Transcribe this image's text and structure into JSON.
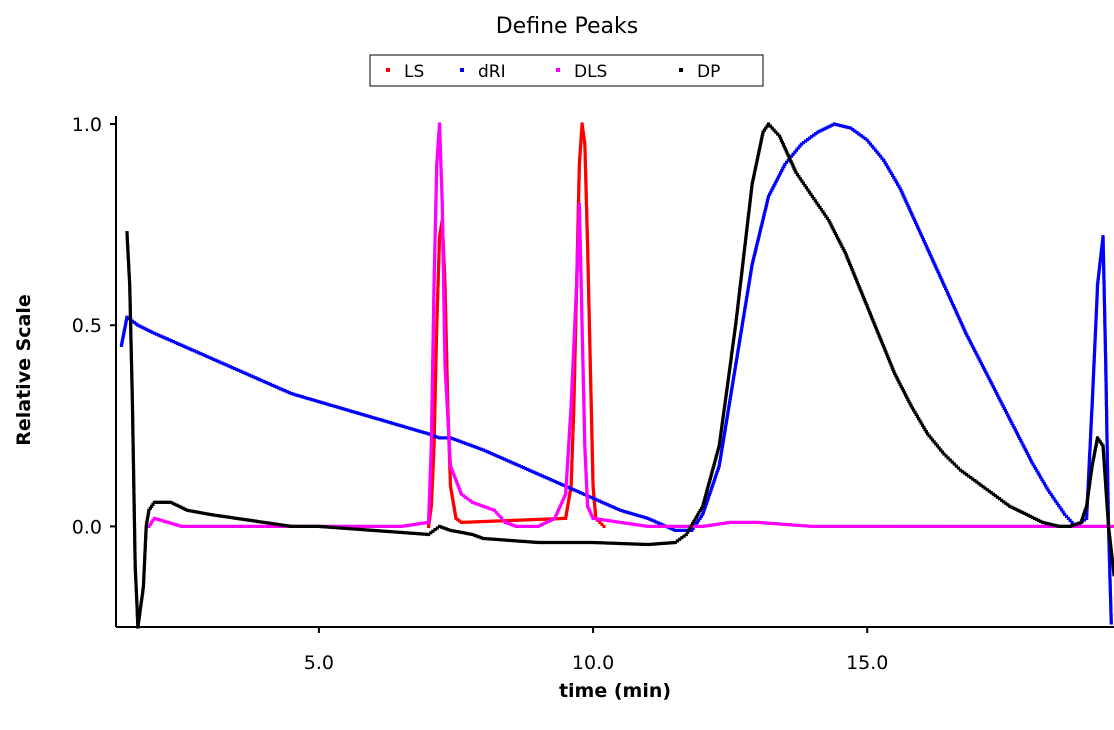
{
  "chart_data": {
    "type": "scatter",
    "title": "Define Peaks",
    "xlabel": "time (min)",
    "ylabel": "Relative Scale",
    "xlim": [
      1.3,
      19.5
    ],
    "ylim": [
      -0.25,
      1.02
    ],
    "grid": false,
    "legend_position": "top-center",
    "x_ticks": [
      5.0,
      10.0,
      15.0
    ],
    "x_tick_labels": [
      "5.0",
      "10.0",
      "15.0"
    ],
    "y_ticks": [
      0.0,
      0.5,
      1.0
    ],
    "y_tick_labels": [
      "0.0",
      "0.5",
      "1.0"
    ],
    "series": [
      {
        "name": "LS",
        "color": "#ff0000",
        "points": [
          [
            7.0,
            0.0
          ],
          [
            7.05,
            0.05
          ],
          [
            7.1,
            0.2
          ],
          [
            7.15,
            0.5
          ],
          [
            7.2,
            0.72
          ],
          [
            7.25,
            0.76
          ],
          [
            7.3,
            0.6
          ],
          [
            7.35,
            0.3
          ],
          [
            7.4,
            0.1
          ],
          [
            7.5,
            0.02
          ],
          [
            7.6,
            0.01
          ],
          [
            9.5,
            0.02
          ],
          [
            9.6,
            0.1
          ],
          [
            9.65,
            0.3
          ],
          [
            9.7,
            0.6
          ],
          [
            9.75,
            0.9
          ],
          [
            9.8,
            1.0
          ],
          [
            9.85,
            0.95
          ],
          [
            9.9,
            0.7
          ],
          [
            9.95,
            0.4
          ],
          [
            10.0,
            0.1
          ],
          [
            10.05,
            0.02
          ],
          [
            10.2,
            0.0
          ]
        ]
      },
      {
        "name": "dRI",
        "color": "#0000ff",
        "points": [
          [
            1.4,
            0.45
          ],
          [
            1.5,
            0.52
          ],
          [
            1.6,
            0.51
          ],
          [
            1.7,
            0.5
          ],
          [
            2.0,
            0.48
          ],
          [
            2.5,
            0.45
          ],
          [
            3.0,
            0.42
          ],
          [
            3.5,
            0.39
          ],
          [
            4.0,
            0.36
          ],
          [
            4.5,
            0.33
          ],
          [
            5.0,
            0.31
          ],
          [
            5.5,
            0.29
          ],
          [
            6.0,
            0.27
          ],
          [
            6.5,
            0.25
          ],
          [
            7.0,
            0.23
          ],
          [
            7.2,
            0.22
          ],
          [
            7.4,
            0.22
          ],
          [
            7.6,
            0.21
          ],
          [
            8.0,
            0.19
          ],
          [
            8.5,
            0.16
          ],
          [
            9.0,
            0.13
          ],
          [
            9.5,
            0.1
          ],
          [
            10.0,
            0.07
          ],
          [
            10.5,
            0.04
          ],
          [
            11.0,
            0.02
          ],
          [
            11.5,
            -0.01
          ],
          [
            11.8,
            -0.01
          ],
          [
            12.0,
            0.03
          ],
          [
            12.3,
            0.15
          ],
          [
            12.6,
            0.4
          ],
          [
            12.9,
            0.65
          ],
          [
            13.2,
            0.82
          ],
          [
            13.5,
            0.9
          ],
          [
            13.8,
            0.95
          ],
          [
            14.1,
            0.98
          ],
          [
            14.4,
            1.0
          ],
          [
            14.7,
            0.99
          ],
          [
            15.0,
            0.96
          ],
          [
            15.3,
            0.91
          ],
          [
            15.6,
            0.84
          ],
          [
            15.9,
            0.75
          ],
          [
            16.2,
            0.66
          ],
          [
            16.5,
            0.57
          ],
          [
            16.8,
            0.48
          ],
          [
            17.1,
            0.4
          ],
          [
            17.4,
            0.32
          ],
          [
            17.7,
            0.24
          ],
          [
            18.0,
            0.16
          ],
          [
            18.3,
            0.09
          ],
          [
            18.6,
            0.03
          ],
          [
            18.8,
            0.0
          ],
          [
            19.0,
            0.02
          ],
          [
            19.1,
            0.3
          ],
          [
            19.2,
            0.6
          ],
          [
            19.3,
            0.72
          ],
          [
            19.35,
            0.4
          ],
          [
            19.4,
            0.0
          ],
          [
            19.45,
            -0.24
          ]
        ]
      },
      {
        "name": "DLS",
        "color": "#ff00ff",
        "points": [
          [
            1.9,
            0.0
          ],
          [
            2.0,
            0.02
          ],
          [
            2.5,
            0.0
          ],
          [
            3.0,
            0.0
          ],
          [
            4.0,
            0.0
          ],
          [
            5.0,
            0.0
          ],
          [
            6.0,
            0.0
          ],
          [
            6.5,
            0.0
          ],
          [
            7.0,
            0.01
          ],
          [
            7.05,
            0.2
          ],
          [
            7.1,
            0.6
          ],
          [
            7.15,
            0.9
          ],
          [
            7.2,
            1.0
          ],
          [
            7.25,
            0.8
          ],
          [
            7.3,
            0.4
          ],
          [
            7.4,
            0.15
          ],
          [
            7.6,
            0.08
          ],
          [
            7.8,
            0.06
          ],
          [
            8.0,
            0.05
          ],
          [
            8.2,
            0.04
          ],
          [
            8.4,
            0.01
          ],
          [
            8.6,
            0.0
          ],
          [
            9.0,
            0.0
          ],
          [
            9.3,
            0.02
          ],
          [
            9.5,
            0.08
          ],
          [
            9.6,
            0.3
          ],
          [
            9.7,
            0.6
          ],
          [
            9.75,
            0.8
          ],
          [
            9.8,
            0.5
          ],
          [
            9.85,
            0.2
          ],
          [
            9.9,
            0.05
          ],
          [
            10.0,
            0.02
          ],
          [
            10.5,
            0.01
          ],
          [
            11.0,
            0.0
          ],
          [
            12.0,
            0.0
          ],
          [
            12.5,
            0.01
          ],
          [
            13.0,
            0.01
          ],
          [
            14.0,
            0.0
          ],
          [
            15.0,
            0.0
          ],
          [
            16.0,
            0.0
          ],
          [
            17.0,
            0.0
          ],
          [
            18.0,
            0.0
          ],
          [
            19.0,
            0.0
          ],
          [
            19.5,
            0.0
          ]
        ]
      },
      {
        "name": "DP",
        "color": "#000000",
        "points": [
          [
            1.5,
            0.73
          ],
          [
            1.55,
            0.6
          ],
          [
            1.6,
            0.3
          ],
          [
            1.65,
            -0.1
          ],
          [
            1.7,
            -0.25
          ],
          [
            1.8,
            -0.15
          ],
          [
            1.85,
            0.0
          ],
          [
            1.9,
            0.04
          ],
          [
            2.0,
            0.06
          ],
          [
            2.3,
            0.06
          ],
          [
            2.6,
            0.04
          ],
          [
            3.0,
            0.03
          ],
          [
            3.5,
            0.02
          ],
          [
            4.0,
            0.01
          ],
          [
            4.5,
            0.0
          ],
          [
            5.0,
            0.0
          ],
          [
            5.5,
            -0.005
          ],
          [
            6.0,
            -0.01
          ],
          [
            6.5,
            -0.015
          ],
          [
            7.0,
            -0.02
          ],
          [
            7.2,
            0.0
          ],
          [
            7.4,
            -0.01
          ],
          [
            7.8,
            -0.02
          ],
          [
            8.0,
            -0.03
          ],
          [
            9.0,
            -0.04
          ],
          [
            10.0,
            -0.04
          ],
          [
            11.0,
            -0.045
          ],
          [
            11.5,
            -0.04
          ],
          [
            11.7,
            -0.02
          ],
          [
            12.0,
            0.05
          ],
          [
            12.3,
            0.2
          ],
          [
            12.6,
            0.5
          ],
          [
            12.9,
            0.85
          ],
          [
            13.1,
            0.98
          ],
          [
            13.2,
            1.0
          ],
          [
            13.4,
            0.97
          ],
          [
            13.7,
            0.88
          ],
          [
            14.0,
            0.82
          ],
          [
            14.3,
            0.76
          ],
          [
            14.6,
            0.68
          ],
          [
            14.9,
            0.58
          ],
          [
            15.2,
            0.48
          ],
          [
            15.5,
            0.38
          ],
          [
            15.8,
            0.3
          ],
          [
            16.1,
            0.23
          ],
          [
            16.4,
            0.18
          ],
          [
            16.7,
            0.14
          ],
          [
            17.0,
            0.11
          ],
          [
            17.3,
            0.08
          ],
          [
            17.6,
            0.05
          ],
          [
            17.9,
            0.03
          ],
          [
            18.2,
            0.01
          ],
          [
            18.5,
            0.0
          ],
          [
            18.7,
            0.0
          ],
          [
            18.9,
            0.01
          ],
          [
            19.0,
            0.05
          ],
          [
            19.1,
            0.15
          ],
          [
            19.2,
            0.22
          ],
          [
            19.3,
            0.2
          ],
          [
            19.4,
            0.0
          ],
          [
            19.5,
            -0.12
          ]
        ]
      }
    ]
  }
}
